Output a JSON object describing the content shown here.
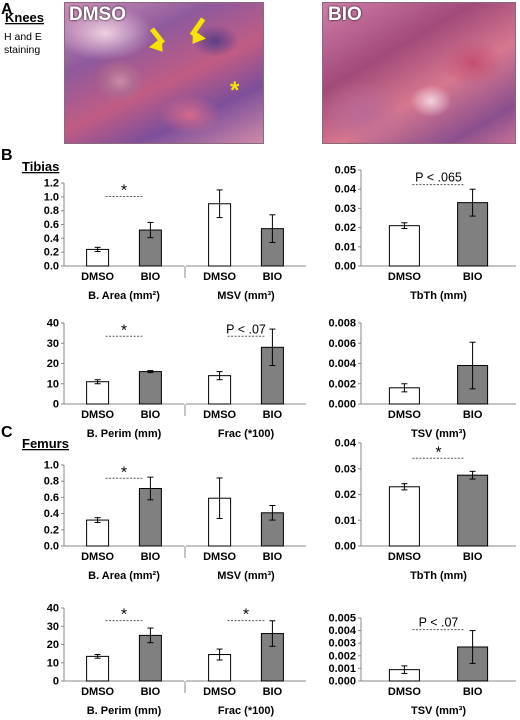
{
  "figure": {
    "panel_a": {
      "label": "A",
      "title": "Knees",
      "stain_lines": [
        "H and E",
        "staining"
      ],
      "images": [
        {
          "label": "DMSO",
          "arrow_color": "#f5e400",
          "arrows": [
            "arrow-icon",
            "arrow-icon"
          ],
          "asterisk": "*"
        },
        {
          "label": "BIO"
        }
      ]
    },
    "panel_b": {
      "label": "B",
      "title": "Tibias"
    },
    "panel_c": {
      "label": "C",
      "title": "Femurs"
    }
  },
  "colors": {
    "dmso_bar": "#ffffff",
    "bio_bar": "#808080",
    "axis": "#888888",
    "sig_line": "#555555"
  },
  "chart_data": [
    {
      "type": "bar",
      "panel": "B",
      "xlabel": "B. Area (mm²)",
      "ylabel": "",
      "categories": [
        "DMSO",
        "BIO"
      ],
      "values": [
        0.24,
        0.52
      ],
      "errors": [
        0.03,
        0.11
      ],
      "ylim": [
        0,
        1.2
      ],
      "yticks": [
        "0.0",
        "0.2",
        "0.4",
        "0.6",
        "0.8",
        "1.0",
        "1.2"
      ],
      "annotation": "*"
    },
    {
      "type": "bar",
      "panel": "B",
      "xlabel": "MSV (mm³)",
      "ylabel": "",
      "categories": [
        "DMSO",
        "BIO"
      ],
      "values": [
        0.9,
        0.54
      ],
      "errors": [
        0.2,
        0.2
      ],
      "ylim": [
        0,
        1.2
      ],
      "yticks": [],
      "annotation": ""
    },
    {
      "type": "bar",
      "panel": "B",
      "xlabel": "TbTh (mm)",
      "ylabel": "",
      "categories": [
        "DMSO",
        "BIO"
      ],
      "values": [
        0.021,
        0.033
      ],
      "errors": [
        0.0015,
        0.007
      ],
      "ylim": [
        0,
        0.05
      ],
      "yticks": [
        "0.00",
        "0.01",
        "0.02",
        "0.03",
        "0.04",
        "0.05"
      ],
      "annotation": "P < .065"
    },
    {
      "type": "bar",
      "panel": "B",
      "xlabel": "B. Perim (mm)",
      "ylabel": "",
      "categories": [
        "DMSO",
        "BIO"
      ],
      "values": [
        11,
        16
      ],
      "errors": [
        1,
        0.5
      ],
      "ylim": [
        0,
        40
      ],
      "yticks": [
        "0",
        "10",
        "20",
        "30",
        "40"
      ],
      "annotation": "*"
    },
    {
      "type": "bar",
      "panel": "B",
      "xlabel": "Frac (*100)",
      "ylabel": "",
      "categories": [
        "DMSO",
        "BIO"
      ],
      "values": [
        14,
        28
      ],
      "errors": [
        2,
        9
      ],
      "ylim": [
        0,
        40
      ],
      "yticks": [],
      "annotation": "P < .07"
    },
    {
      "type": "bar",
      "panel": "B",
      "xlabel": "TSV (mm³)",
      "ylabel": "",
      "categories": [
        "DMSO",
        "BIO"
      ],
      "values": [
        0.0016,
        0.0038
      ],
      "errors": [
        0.0004,
        0.0023
      ],
      "ylim": [
        0,
        0.008
      ],
      "yticks": [
        "0.000",
        "0.002",
        "0.004",
        "0.006",
        "0.008"
      ],
      "annotation": ""
    },
    {
      "type": "bar",
      "panel": "C",
      "xlabel": "B. Area (mm²)",
      "ylabel": "",
      "categories": [
        "DMSO",
        "BIO"
      ],
      "values": [
        0.32,
        0.71
      ],
      "errors": [
        0.03,
        0.14
      ],
      "ylim": [
        0,
        1.0
      ],
      "yticks": [
        "0.0",
        "0.2",
        "0.4",
        "0.6",
        "0.8",
        "1.0"
      ],
      "annotation": "*"
    },
    {
      "type": "bar",
      "panel": "C",
      "xlabel": "MSV (mm³)",
      "ylabel": "",
      "categories": [
        "DMSO",
        "BIO"
      ],
      "values": [
        0.59,
        0.41
      ],
      "errors": [
        0.25,
        0.09
      ],
      "ylim": [
        0,
        1.0
      ],
      "yticks": [],
      "annotation": ""
    },
    {
      "type": "bar",
      "panel": "C",
      "xlabel": "TbTh (mm)",
      "ylabel": "",
      "categories": [
        "DMSO",
        "BIO"
      ],
      "values": [
        0.023,
        0.0275
      ],
      "errors": [
        0.0012,
        0.0015
      ],
      "ylim": [
        0,
        0.04
      ],
      "yticks": [
        "0.00",
        "0.01",
        "0.02",
        "0.03",
        "0.04"
      ],
      "annotation": "*"
    },
    {
      "type": "bar",
      "panel": "C",
      "xlabel": "B. Perim (mm)",
      "ylabel": "",
      "categories": [
        "DMSO",
        "BIO"
      ],
      "values": [
        13.5,
        25
      ],
      "errors": [
        1,
        4
      ],
      "ylim": [
        0,
        40
      ],
      "yticks": [
        "0",
        "10",
        "20",
        "30",
        "40"
      ],
      "annotation": "*"
    },
    {
      "type": "bar",
      "panel": "C",
      "xlabel": "Frac (*100)",
      "ylabel": "",
      "categories": [
        "DMSO",
        "BIO"
      ],
      "values": [
        14.5,
        26
      ],
      "errors": [
        3,
        7
      ],
      "ylim": [
        0,
        40
      ],
      "yticks": [],
      "annotation": "*"
    },
    {
      "type": "bar",
      "panel": "C",
      "xlabel": "TSV (mm³)",
      "ylabel": "",
      "categories": [
        "DMSO",
        "BIO"
      ],
      "values": [
        0.0009,
        0.0027
      ],
      "errors": [
        0.0003,
        0.0013
      ],
      "ylim": [
        0,
        0.005
      ],
      "yticks": [
        "0.000",
        "0.001",
        "0.002",
        "0.003",
        "0.004",
        "0.005"
      ],
      "annotation": "P < .07"
    }
  ]
}
